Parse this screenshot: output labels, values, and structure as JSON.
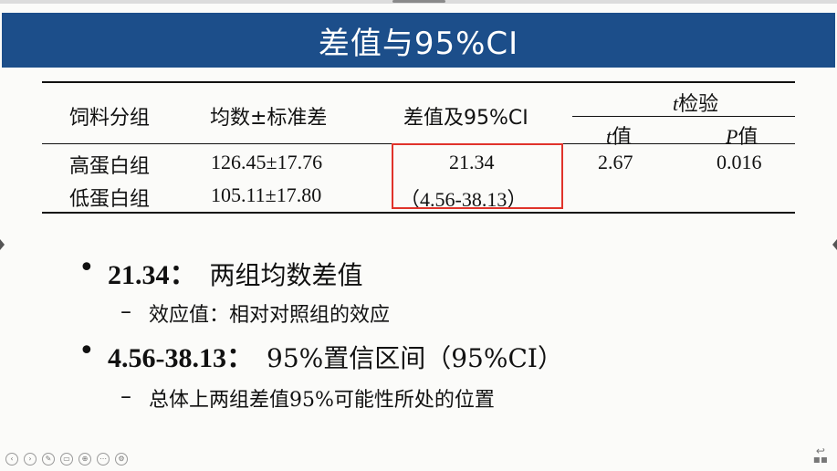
{
  "slide": {
    "title": "差值与95%CI"
  },
  "table": {
    "headers": {
      "group": "饲料分组",
      "mean_sd": "均数±标准差",
      "diff_ci": "差值及95%CI",
      "ttest_italic": "t",
      "ttest_rest": "检验",
      "t_italic": "t",
      "t_rest": "值",
      "p_italic": "P",
      "p_rest": "值"
    },
    "rows": [
      {
        "group": "高蛋白组",
        "mean_sd": "126.45±17.76",
        "diff": "21.34",
        "t": "2.67",
        "p": "0.016"
      },
      {
        "group": "低蛋白组",
        "mean_sd": "105.11±17.80",
        "ci": "（4.56-38.13）"
      }
    ]
  },
  "bullets": [
    {
      "key": "21.34：",
      "text": "两组均数差值",
      "sub": "效应值：相对对照组的效应"
    },
    {
      "key": "4.56-38.13：",
      "text": "95%置信区间（95%CI）",
      "sub": "总体上两组差值95%可能性所处的位置"
    }
  ],
  "glyphs": {
    "bullet": "•",
    "dash": "–"
  },
  "colors": {
    "title_bar": "#1c4e8a",
    "highlight": "#e0332b"
  },
  "toolbar_icons": [
    "prev-icon",
    "next-icon",
    "pen-icon",
    "slides-icon",
    "zoom-icon",
    "more-icon",
    "settings-icon"
  ]
}
